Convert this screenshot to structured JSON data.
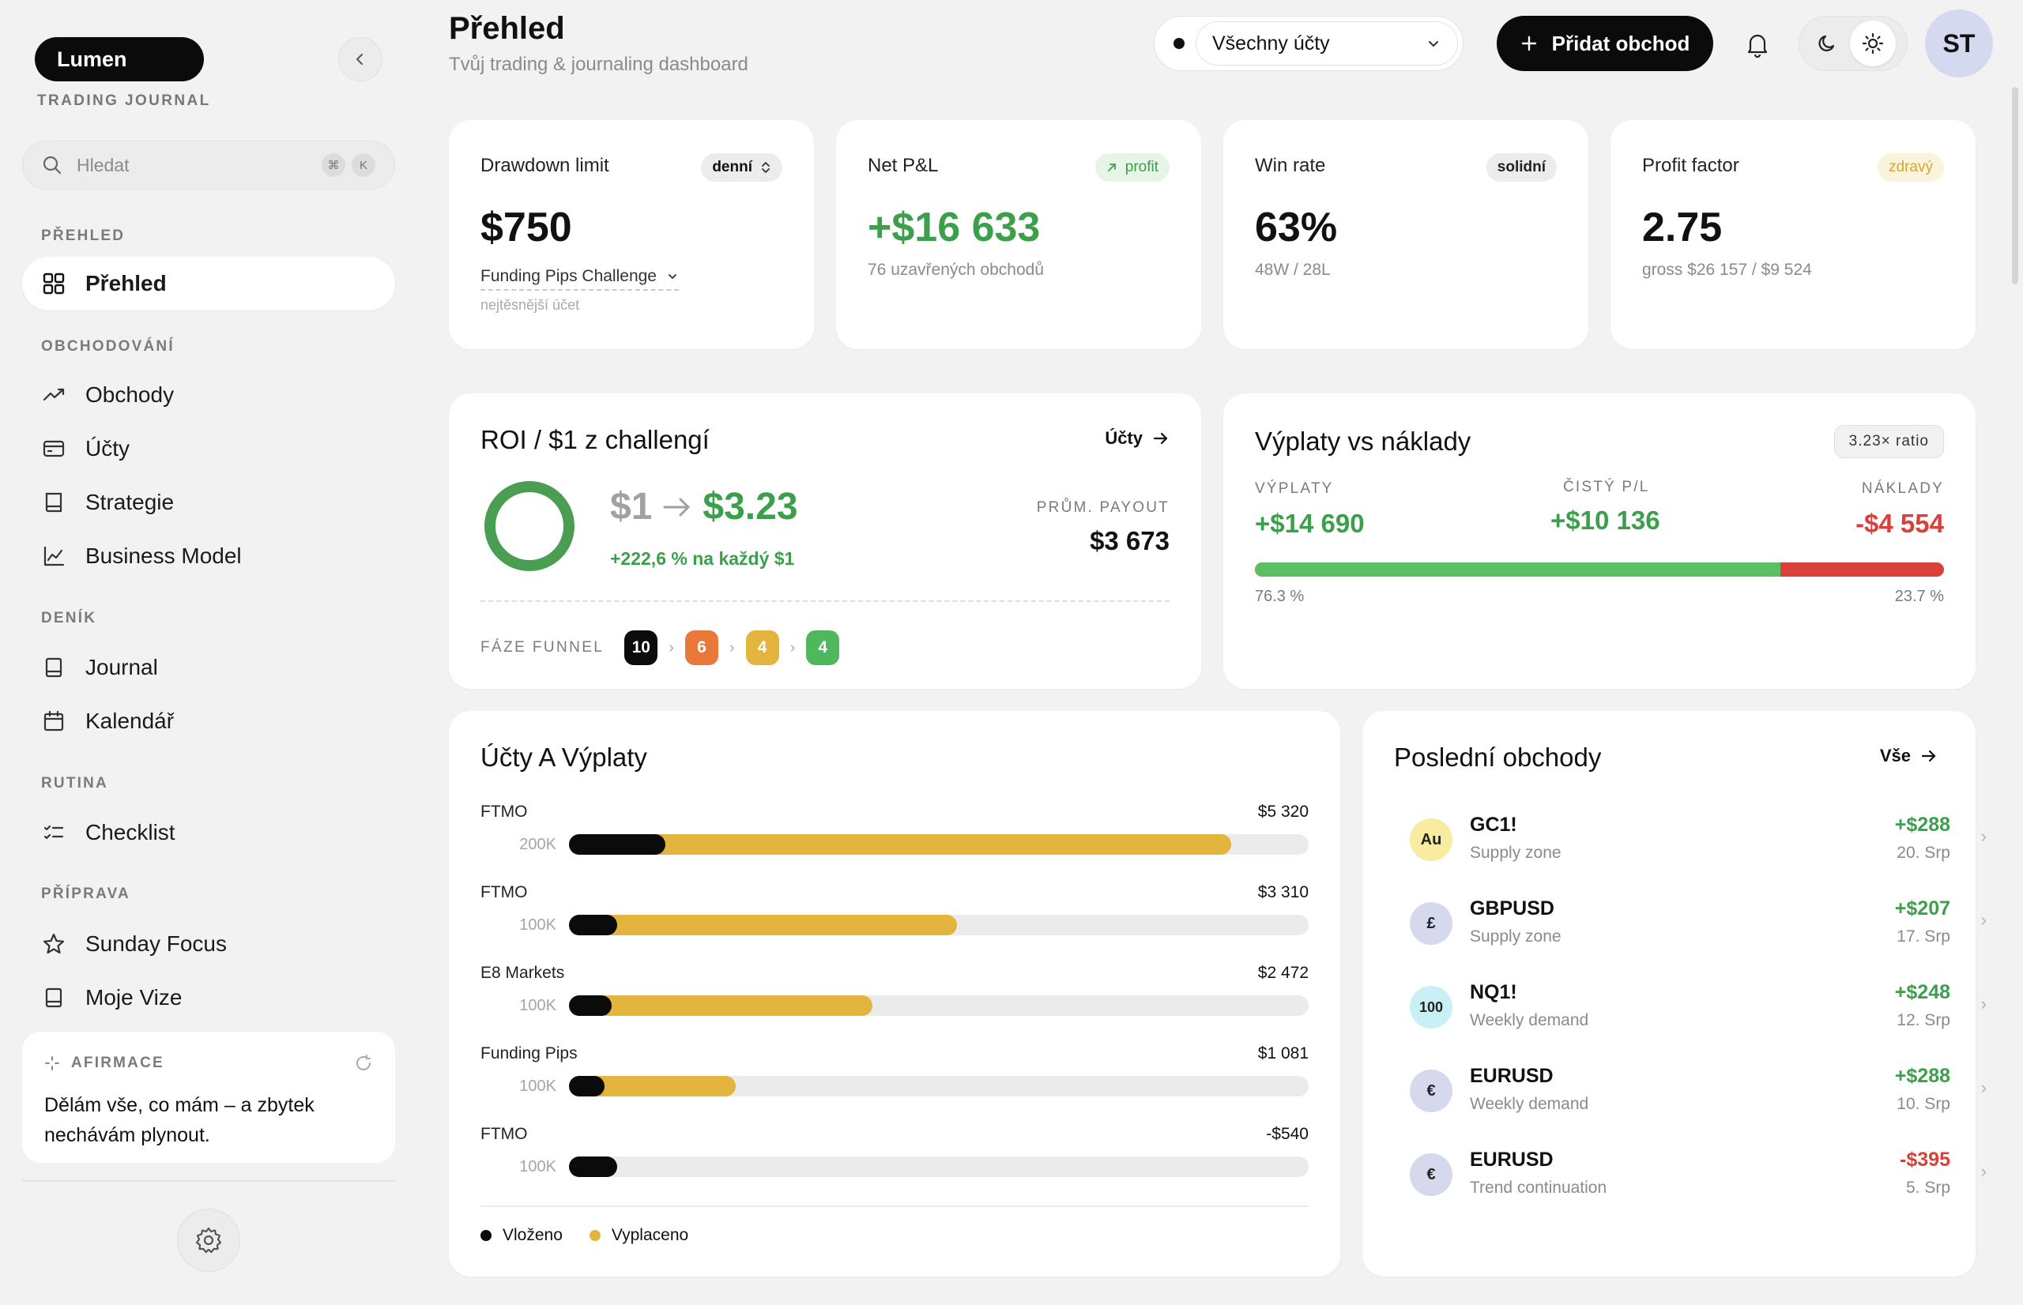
{
  "sidebar": {
    "logo": "Lumen",
    "logo_sub": "TRADING JOURNAL",
    "search_placeholder": "Hledat",
    "search_kbd": [
      "⌘",
      "K"
    ],
    "sections": [
      {
        "title": "PŘEHLED",
        "items": [
          {
            "label": "Přehled",
            "icon": "grid-icon",
            "active": true
          }
        ]
      },
      {
        "title": "OBCHODOVÁNÍ",
        "items": [
          {
            "label": "Obchody",
            "icon": "trend-icon"
          },
          {
            "label": "Účty",
            "icon": "wallet-icon"
          },
          {
            "label": "Strategie",
            "icon": "book-icon"
          },
          {
            "label": "Business Model",
            "icon": "chart-icon"
          }
        ]
      },
      {
        "title": "DENÍK",
        "items": [
          {
            "label": "Journal",
            "icon": "notebook-icon"
          },
          {
            "label": "Kalendář",
            "icon": "calendar-icon"
          }
        ]
      },
      {
        "title": "RUTINA",
        "items": [
          {
            "label": "Checklist",
            "icon": "checklist-icon"
          }
        ]
      },
      {
        "title": "PŘÍPRAVA",
        "items": [
          {
            "label": "Sunday Focus",
            "icon": "star-icon"
          },
          {
            "label": "Moje Vize",
            "icon": "notebook-icon"
          }
        ]
      }
    ],
    "affirmation": {
      "title": "AFIRMACE",
      "text": "Dělám vše, co mám – a zbytek nechávám plynout."
    }
  },
  "header": {
    "title": "Přehled",
    "subtitle": "Tvůj trading & journaling dashboard",
    "account_select": "Všechny účty",
    "add_button": "Přidat obchod",
    "avatar": "ST"
  },
  "stats": [
    {
      "label": "Drawdown limit",
      "tag": "denní",
      "value": "$750",
      "sub_select": "Funding Pips Challenge",
      "sub_note": "nejtěsnější účet"
    },
    {
      "label": "Net P&L",
      "tag": "profit",
      "value": "+$16 633",
      "sub": "76 uzavřených obchodů"
    },
    {
      "label": "Win rate",
      "tag": "solidní",
      "value": "63%",
      "sub": "48W / 28L"
    },
    {
      "label": "Profit factor",
      "tag": "zdravý",
      "value": "2.75",
      "sub": "gross $26 157 / $9 524"
    }
  ],
  "roi": {
    "title": "ROI / $1 z challengí",
    "link": "Účty",
    "from": "$1",
    "to": "$3.23",
    "note": "+222,6 % na každý $1",
    "payout_label": "PRŮM. PAYOUT",
    "payout_value": "$3 673",
    "funnel_label": "FÁZE FUNNEL",
    "funnel": [
      {
        "value": "10",
        "color": "#0b0b0b"
      },
      {
        "value": "6",
        "color": "#e8793a"
      },
      {
        "value": "4",
        "color": "#e3b53e"
      },
      {
        "value": "4",
        "color": "#4fb85c"
      }
    ]
  },
  "payouts": {
    "title": "Výplaty vs náklady",
    "ratio": "3.23× ratio",
    "col1_label": "VÝPLATY",
    "col1_value": "+$14 690",
    "col2_label": "ČISTÝ P/L",
    "col2_value": "+$10 136",
    "col3_label": "NÁKLADY",
    "col3_value": "-$4 554",
    "left_pct": "76.3 %",
    "right_pct": "23.7 %",
    "left_fraction": 0.763
  },
  "accounts": {
    "title": "Účty A Výplaty",
    "rows": [
      {
        "name": "FTMO",
        "size": "200K",
        "amount": "$5 320",
        "deposit": 0.13,
        "payout": 0.895
      },
      {
        "name": "FTMO",
        "size": "100K",
        "amount": "$3 310",
        "deposit": 0.065,
        "payout": 0.525
      },
      {
        "name": "E8 Markets",
        "size": "100K",
        "amount": "$2 472",
        "deposit": 0.058,
        "payout": 0.41
      },
      {
        "name": "Funding Pips",
        "size": "100K",
        "amount": "$1 081",
        "deposit": 0.048,
        "payout": 0.225
      },
      {
        "name": "FTMO",
        "size": "100K",
        "amount": "-$540",
        "deposit": 0.065,
        "payout": 0.0
      }
    ],
    "legend_deposit": "Vloženo",
    "legend_payout": "Vyplaceno"
  },
  "trades": {
    "title": "Poslední obchody",
    "link": "Vše",
    "rows": [
      {
        "symbol": "Au",
        "sym_bg": "#f8eca0",
        "name": "GC1!",
        "desc": "Supply zone",
        "pl": "+$288",
        "date": "20. Srp",
        "positive": true
      },
      {
        "symbol": "£",
        "sym_bg": "#d6d9ee",
        "name": "GBPUSD",
        "desc": "Supply zone",
        "pl": "+$207",
        "date": "17. Srp",
        "positive": true
      },
      {
        "symbol": "100",
        "sym_bg": "#c9f0f5",
        "name": "NQ1!",
        "desc": "Weekly demand",
        "pl": "+$248",
        "date": "12. Srp",
        "positive": true
      },
      {
        "symbol": "€",
        "sym_bg": "#d6d9ee",
        "name": "EURUSD",
        "desc": "Weekly demand",
        "pl": "+$288",
        "date": "10. Srp",
        "positive": true
      },
      {
        "symbol": "€",
        "sym_bg": "#d6d9ee",
        "name": "EURUSD",
        "desc": "Trend continuation",
        "pl": "-$395",
        "date": "5. Srp",
        "positive": false
      }
    ]
  }
}
